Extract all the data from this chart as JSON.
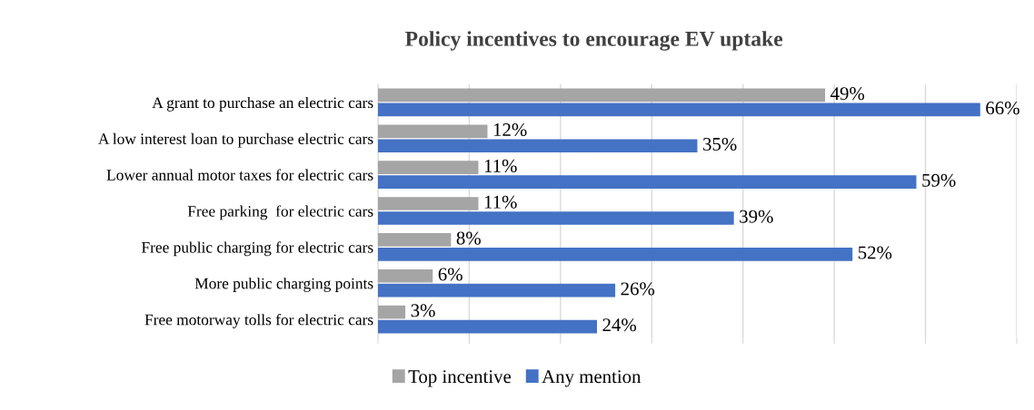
{
  "chart_data": {
    "type": "bar",
    "orientation": "horizontal",
    "title": "Policy incentives to encourage EV uptake",
    "categories": [
      "A grant to purchase an electric cars",
      "A low interest loan to purchase electric cars",
      "Lower annual motor taxes for electric cars",
      "Free parking  for electric cars",
      "Free public charging for electric cars",
      "More public charging points",
      "Free motorway tolls for electric cars"
    ],
    "series": [
      {
        "name": "Top incentive",
        "color": "#a5a5a5",
        "values": [
          49,
          12,
          11,
          11,
          8,
          6,
          3
        ],
        "value_labels": [
          "49%",
          "12%",
          "11%",
          "11%",
          "8%",
          "6%",
          "3%"
        ]
      },
      {
        "name": "Any mention",
        "color": "#4472c4",
        "values": [
          66,
          35,
          59,
          39,
          52,
          26,
          24
        ],
        "value_labels": [
          "66%",
          "35%",
          "59%",
          "39%",
          "52%",
          "26%",
          "24%"
        ]
      }
    ],
    "xlim": [
      0,
      70
    ],
    "xticks": [
      {
        "value": 0,
        "label": null
      },
      {
        "value": 10,
        "label": null
      },
      {
        "value": 20,
        "label": null
      },
      {
        "value": 30,
        "label": null
      },
      {
        "value": 40,
        "label": null
      },
      {
        "value": 50,
        "label": null
      },
      {
        "value": 60,
        "label": null
      },
      {
        "value": 70,
        "label": null
      }
    ],
    "tick_labels": "y",
    "grid": "x",
    "legend": "bottom"
  }
}
